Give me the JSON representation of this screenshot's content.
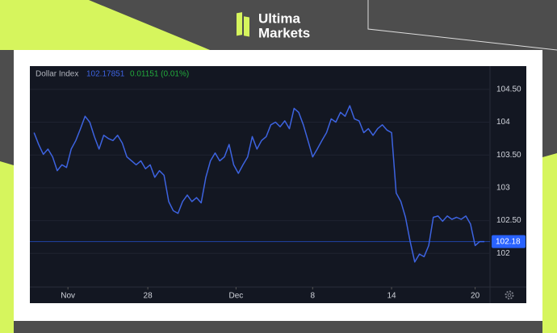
{
  "brand": {
    "line1": "Ultima",
    "line2": "Markets"
  },
  "chart_data": {
    "type": "line",
    "title": "Dollar Index",
    "last_value": "102.17851",
    "change": "0.01151 (0.01%)",
    "series": [
      {
        "name": "Dollar Index",
        "color": "#3d63e0",
        "values": [
          103.84,
          103.66,
          103.51,
          103.59,
          103.47,
          103.26,
          103.35,
          103.31,
          103.59,
          103.72,
          103.9,
          104.09,
          104.0,
          103.78,
          103.59,
          103.8,
          103.75,
          103.72,
          103.8,
          103.68,
          103.47,
          103.41,
          103.35,
          103.41,
          103.29,
          103.35,
          103.16,
          103.26,
          103.19,
          102.79,
          102.65,
          102.61,
          102.79,
          102.89,
          102.79,
          102.85,
          102.77,
          103.16,
          103.41,
          103.53,
          103.41,
          103.47,
          103.66,
          103.35,
          103.22,
          103.35,
          103.47,
          103.78,
          103.59,
          103.72,
          103.78,
          103.96,
          104.0,
          103.93,
          104.02,
          103.9,
          104.21,
          104.15,
          103.96,
          103.72,
          103.47,
          103.59,
          103.72,
          103.84,
          104.05,
          104.0,
          104.15,
          104.09,
          104.25,
          104.05,
          104.02,
          103.84,
          103.9,
          103.8,
          103.9,
          103.96,
          103.88,
          103.84,
          102.92,
          102.79,
          102.55,
          102.18,
          101.87,
          101.99,
          101.95,
          102.12,
          102.55,
          102.57,
          102.49,
          102.57,
          102.52,
          102.55,
          102.52,
          102.57,
          102.45,
          102.12,
          102.18,
          102.18
        ]
      }
    ],
    "current": 102.18,
    "current_color": "#2962ff",
    "xlim": [
      -0.9,
      98.2
    ],
    "xticks": [
      {
        "value": 7.3,
        "label": "Nov"
      },
      {
        "value": 24.5,
        "label": "28"
      },
      {
        "value": 43.5,
        "label": "Dec"
      },
      {
        "value": 60,
        "label": "8"
      },
      {
        "value": 77,
        "label": "14"
      },
      {
        "value": 95,
        "label": "20"
      }
    ],
    "ylim": [
      101.5,
      104.78
    ],
    "yticks": [
      102,
      {
        "value": 102.5,
        "label": "102.50"
      },
      103,
      {
        "value": 103.5,
        "label": "103.50"
      },
      104,
      {
        "value": 104.5,
        "label": "104.50"
      }
    ]
  }
}
